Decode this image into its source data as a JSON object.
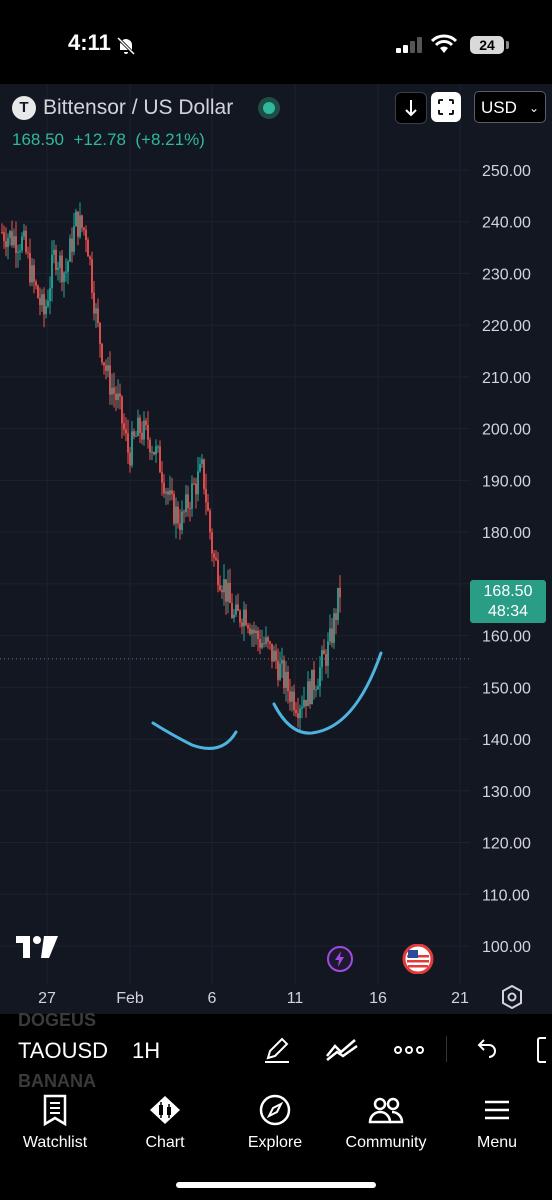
{
  "status_bar": {
    "time": "4:11",
    "battery": "24"
  },
  "header": {
    "symbol_logo": "T",
    "title": "Bittensor / US Dollar",
    "price": "168.50",
    "change": "+12.78",
    "change_pct": "(+8.21%)",
    "currency": "USD"
  },
  "chart_data": {
    "type": "candlestick",
    "y_ticks": [
      "250.00",
      "240.00",
      "230.00",
      "220.00",
      "210.00",
      "200.00",
      "190.00",
      "180.00",
      "160.00",
      "150.00",
      "140.00",
      "130.00",
      "120.00",
      "110.00",
      "100.00"
    ],
    "ylim": [
      100,
      250
    ],
    "x_ticks": [
      "27",
      "Feb",
      "6",
      "11",
      "16",
      "21"
    ],
    "last_price": "168.50",
    "countdown": "48:34",
    "series": [
      {
        "name": "",
        "values": [
          238,
          237,
          236,
          228,
          222,
          234,
          230,
          240,
          238,
          220,
          210,
          205,
          195,
          200,
          198,
          193,
          185,
          182,
          188,
          192,
          175,
          170,
          163,
          165,
          160,
          158,
          155,
          150,
          147,
          149,
          153,
          158,
          168.5
        ]
      }
    ],
    "colors": {
      "up": "#26a69a",
      "down": "#ef5350",
      "drawing": "#4fb3e0",
      "background": "#131722",
      "grid": "#1e222d"
    }
  },
  "symbol_bar": {
    "ghost_top": "DOGEUS",
    "symbol": "TAOUSD",
    "interval": "1H",
    "ghost_bottom": "BANANA"
  },
  "tabs": [
    {
      "label": "Watchlist",
      "icon": "watchlist-icon"
    },
    {
      "label": "Chart",
      "icon": "chart-icon"
    },
    {
      "label": "Explore",
      "icon": "compass-icon"
    },
    {
      "label": "Community",
      "icon": "community-icon"
    },
    {
      "label": "Menu",
      "icon": "menu-icon"
    }
  ]
}
